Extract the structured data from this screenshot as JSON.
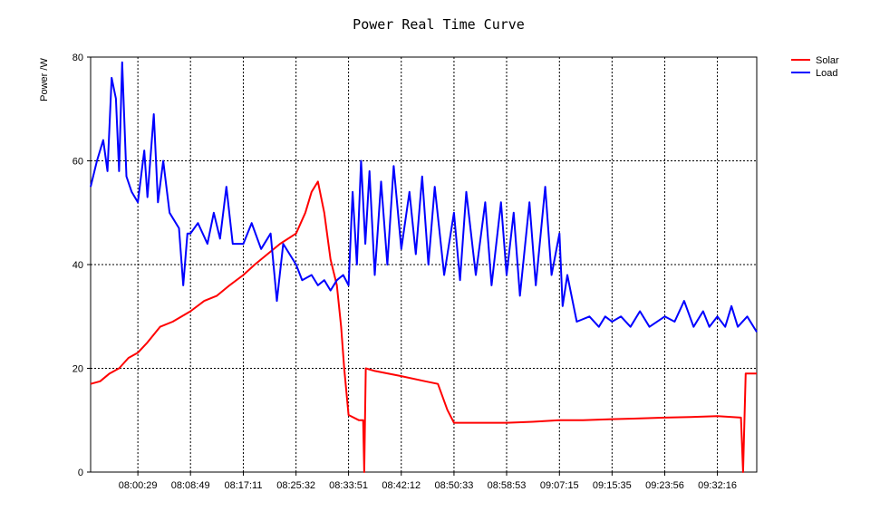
{
  "chart_data": {
    "type": "line",
    "title": "Power Real Time Curve",
    "ylabel": "Power /W",
    "xlabel": "",
    "ylim": [
      0,
      80
    ],
    "y_ticks": [
      0,
      20,
      40,
      60,
      80
    ],
    "x_ticks": [
      "08:00:29",
      "08:08:49",
      "08:17:11",
      "08:25:32",
      "08:33:51",
      "08:42:12",
      "08:50:33",
      "08:58:53",
      "09:07:15",
      "09:15:35",
      "09:23:56",
      "09:32:16"
    ],
    "xlim": [
      "07:53:00",
      "09:38:30"
    ],
    "grid": true,
    "legend": "top-right",
    "series": [
      {
        "name": "Solar",
        "color": "#ff0000",
        "points": [
          [
            "07:53:00",
            17
          ],
          [
            "07:54:30",
            17.5
          ],
          [
            "07:56:00",
            19
          ],
          [
            "07:57:30",
            20
          ],
          [
            "07:59:00",
            22
          ],
          [
            "08:00:29",
            23
          ],
          [
            "08:02:00",
            25
          ],
          [
            "08:04:00",
            28
          ],
          [
            "08:06:00",
            29
          ],
          [
            "08:08:49",
            31
          ],
          [
            "08:11:00",
            33
          ],
          [
            "08:13:00",
            34
          ],
          [
            "08:15:00",
            36
          ],
          [
            "08:17:11",
            38
          ],
          [
            "08:19:00",
            40
          ],
          [
            "08:21:00",
            42
          ],
          [
            "08:23:00",
            44
          ],
          [
            "08:25:32",
            46
          ],
          [
            "08:27:00",
            50
          ],
          [
            "08:28:00",
            54
          ],
          [
            "08:29:00",
            56
          ],
          [
            "08:30:00",
            50
          ],
          [
            "08:31:00",
            41
          ],
          [
            "08:32:00",
            36
          ],
          [
            "08:32:40",
            28
          ],
          [
            "08:33:10",
            20
          ],
          [
            "08:33:51",
            11
          ],
          [
            "08:35:30",
            10
          ],
          [
            "08:36:10",
            10
          ],
          [
            "08:36:20",
            0
          ],
          [
            "08:36:35",
            20
          ],
          [
            "08:38:00",
            19.5
          ],
          [
            "08:42:12",
            18.5
          ],
          [
            "08:46:00",
            17.5
          ],
          [
            "08:48:00",
            17
          ],
          [
            "08:49:30",
            12
          ],
          [
            "08:50:33",
            9.5
          ],
          [
            "08:54:00",
            9.5
          ],
          [
            "08:58:53",
            9.5
          ],
          [
            "09:03:00",
            9.7
          ],
          [
            "09:07:15",
            10
          ],
          [
            "09:11:00",
            10
          ],
          [
            "09:15:35",
            10.2
          ],
          [
            "09:19:00",
            10.3
          ],
          [
            "09:23:56",
            10.5
          ],
          [
            "09:28:00",
            10.6
          ],
          [
            "09:32:16",
            10.8
          ],
          [
            "09:36:00",
            10.5
          ],
          [
            "09:36:20",
            0
          ],
          [
            "09:36:45",
            19
          ],
          [
            "09:38:30",
            19
          ]
        ]
      },
      {
        "name": "Load",
        "color": "#0000ff",
        "points": [
          [
            "07:53:00",
            55
          ],
          [
            "07:54:00",
            60
          ],
          [
            "07:55:00",
            64
          ],
          [
            "07:55:40",
            58
          ],
          [
            "07:56:20",
            76
          ],
          [
            "07:57:00",
            72
          ],
          [
            "07:57:30",
            58
          ],
          [
            "07:58:00",
            79
          ],
          [
            "07:58:40",
            57
          ],
          [
            "07:59:30",
            54
          ],
          [
            "08:00:29",
            52
          ],
          [
            "08:01:30",
            62
          ],
          [
            "08:02:00",
            53
          ],
          [
            "08:03:00",
            69
          ],
          [
            "08:03:40",
            52
          ],
          [
            "08:04:30",
            60
          ],
          [
            "08:05:30",
            50
          ],
          [
            "08:07:00",
            47
          ],
          [
            "08:07:40",
            36
          ],
          [
            "08:08:20",
            46
          ],
          [
            "08:08:49",
            46
          ],
          [
            "08:10:00",
            48
          ],
          [
            "08:11:30",
            44
          ],
          [
            "08:12:30",
            50
          ],
          [
            "08:13:30",
            45
          ],
          [
            "08:14:30",
            55
          ],
          [
            "08:15:30",
            44
          ],
          [
            "08:17:11",
            44
          ],
          [
            "08:18:30",
            48
          ],
          [
            "08:20:00",
            43
          ],
          [
            "08:21:30",
            46
          ],
          [
            "08:22:30",
            33
          ],
          [
            "08:23:30",
            44
          ],
          [
            "08:25:32",
            40
          ],
          [
            "08:26:30",
            37
          ],
          [
            "08:28:00",
            38
          ],
          [
            "08:29:00",
            36
          ],
          [
            "08:30:00",
            37
          ],
          [
            "08:31:00",
            35
          ],
          [
            "08:32:00",
            37
          ],
          [
            "08:33:00",
            38
          ],
          [
            "08:33:51",
            36
          ],
          [
            "08:34:30",
            54
          ],
          [
            "08:35:10",
            40
          ],
          [
            "08:35:50",
            60
          ],
          [
            "08:36:30",
            44
          ],
          [
            "08:37:10",
            58
          ],
          [
            "08:38:00",
            38
          ],
          [
            "08:39:00",
            56
          ],
          [
            "08:40:00",
            40
          ],
          [
            "08:41:00",
            59
          ],
          [
            "08:42:12",
            43
          ],
          [
            "08:43:30",
            54
          ],
          [
            "08:44:30",
            42
          ],
          [
            "08:45:30",
            57
          ],
          [
            "08:46:30",
            40
          ],
          [
            "08:47:30",
            55
          ],
          [
            "08:49:00",
            38
          ],
          [
            "08:50:33",
            50
          ],
          [
            "08:51:30",
            37
          ],
          [
            "08:52:30",
            54
          ],
          [
            "08:54:00",
            38
          ],
          [
            "08:55:30",
            52
          ],
          [
            "08:56:30",
            36
          ],
          [
            "08:58:00",
            52
          ],
          [
            "08:58:53",
            38
          ],
          [
            "09:00:00",
            50
          ],
          [
            "09:01:00",
            34
          ],
          [
            "09:02:30",
            52
          ],
          [
            "09:03:30",
            36
          ],
          [
            "09:05:00",
            55
          ],
          [
            "09:06:00",
            38
          ],
          [
            "09:07:15",
            46
          ],
          [
            "09:07:45",
            32
          ],
          [
            "09:08:30",
            38
          ],
          [
            "09:10:00",
            29
          ],
          [
            "09:12:00",
            30
          ],
          [
            "09:13:30",
            28
          ],
          [
            "09:14:30",
            30
          ],
          [
            "09:15:35",
            29
          ],
          [
            "09:17:00",
            30
          ],
          [
            "09:18:30",
            28
          ],
          [
            "09:20:00",
            31
          ],
          [
            "09:21:30",
            28
          ],
          [
            "09:23:56",
            30
          ],
          [
            "09:25:30",
            29
          ],
          [
            "09:27:00",
            33
          ],
          [
            "09:28:30",
            28
          ],
          [
            "09:30:00",
            31
          ],
          [
            "09:31:00",
            28
          ],
          [
            "09:32:16",
            30
          ],
          [
            "09:33:30",
            28
          ],
          [
            "09:34:30",
            32
          ],
          [
            "09:35:30",
            28
          ],
          [
            "09:37:00",
            30
          ],
          [
            "09:38:30",
            27
          ]
        ]
      }
    ]
  }
}
